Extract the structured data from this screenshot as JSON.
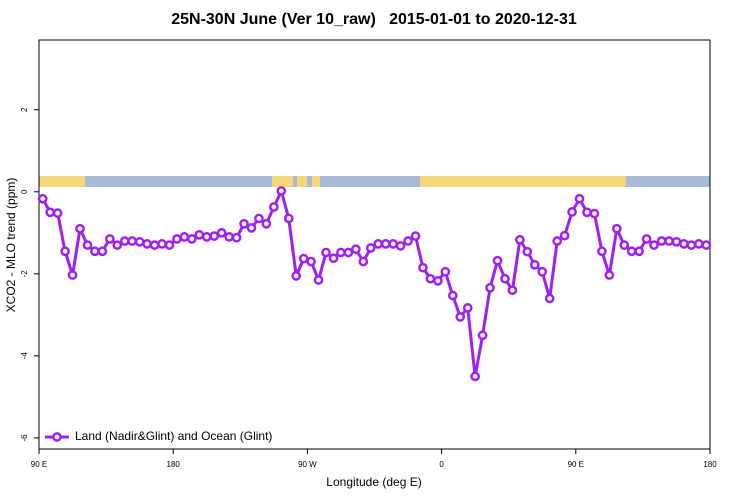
{
  "chart_data": {
    "type": "line",
    "title": "25N-30N June (Ver 10_raw)   2015-01-01 to 2020-12-31",
    "x_label": "Longitude (deg E)",
    "y_label": "XCO2 - MLO trend (ppm)",
    "xlim": [
      90,
      540
    ],
    "ylim": [
      -6.27,
      3.7
    ],
    "xticks": [
      {
        "value": 90,
        "label": "90 E"
      },
      180,
      {
        "value": 270,
        "label": "90 W"
      },
      {
        "value": 360,
        "label": "0"
      },
      {
        "value": 450,
        "label": "90 E"
      },
      {
        "value": 540,
        "label": "180"
      }
    ],
    "yticks": [
      -6,
      -4,
      -2,
      0,
      2
    ],
    "legend": "bottom-left",
    "x": [
      92.5,
      97.5,
      102.5,
      107.5,
      112.5,
      117.5,
      122.5,
      127.5,
      132.5,
      137.5,
      142.5,
      147.5,
      152.5,
      157.5,
      162.5,
      167.5,
      172.5,
      177.5,
      182.5,
      187.5,
      192.5,
      197.5,
      202.5,
      207.5,
      212.5,
      217.5,
      222.5,
      227.5,
      232.5,
      237.5,
      242.5,
      247.5,
      252.5,
      257.5,
      262.5,
      267.5,
      272.5,
      277.5,
      282.5,
      287.5,
      292.5,
      297.5,
      302.5,
      307.5,
      312.5,
      317.5,
      322.5,
      327.5,
      332.5,
      337.5,
      342.5,
      347.5,
      352.5,
      357.5,
      362.5,
      367.5,
      372.5,
      377.5,
      382.5,
      387.5,
      392.5,
      397.5,
      402.5,
      407.5,
      412.5,
      417.5,
      422.5,
      427.5,
      432.5,
      437.5,
      442.5,
      447.5,
      452.5,
      457.5,
      462.5,
      467.5,
      472.5,
      477.5,
      482.5,
      487.5,
      492.5,
      497.5,
      502.5,
      507.5,
      512.5,
      517.5,
      522.5,
      527.5,
      532.5,
      537.5
    ],
    "series": [
      {
        "name": "Land (Nadir&Glint) and Ocean (Glint)",
        "color": "#a020f0",
        "values": [
          -0.17,
          -0.5,
          -0.52,
          -1.45,
          -2.03,
          -0.9,
          -1.3,
          -1.45,
          -1.45,
          -1.15,
          -1.3,
          -1.2,
          -1.2,
          -1.22,
          -1.27,
          -1.3,
          -1.27,
          -1.3,
          -1.15,
          -1.1,
          -1.15,
          -1.05,
          -1.1,
          -1.08,
          -1.0,
          -1.1,
          -1.12,
          -0.78,
          -0.88,
          -0.65,
          -0.78,
          -0.37,
          0.02,
          -0.65,
          -2.05,
          -1.63,
          -1.7,
          -2.15,
          -1.48,
          -1.62,
          -1.48,
          -1.48,
          -1.4,
          -1.7,
          -1.37,
          -1.27,
          -1.27,
          -1.27,
          -1.32,
          -1.2,
          -1.08,
          -1.85,
          -2.12,
          -2.17,
          -1.95,
          -2.53,
          -3.05,
          -2.83,
          -4.5,
          -3.5,
          -2.34,
          -1.68,
          -2.12,
          -2.4,
          -1.17,
          -1.46,
          -1.78,
          -1.95,
          -2.6,
          -1.2,
          -1.07,
          -0.49,
          -0.17,
          -0.5,
          -0.53,
          -1.45,
          -2.03,
          -0.9,
          -1.3,
          -1.45,
          -1.45,
          -1.15,
          -1.3,
          -1.2,
          -1.2,
          -1.22,
          -1.27,
          -1.3,
          -1.27,
          -1.3
        ]
      }
    ]
  }
}
